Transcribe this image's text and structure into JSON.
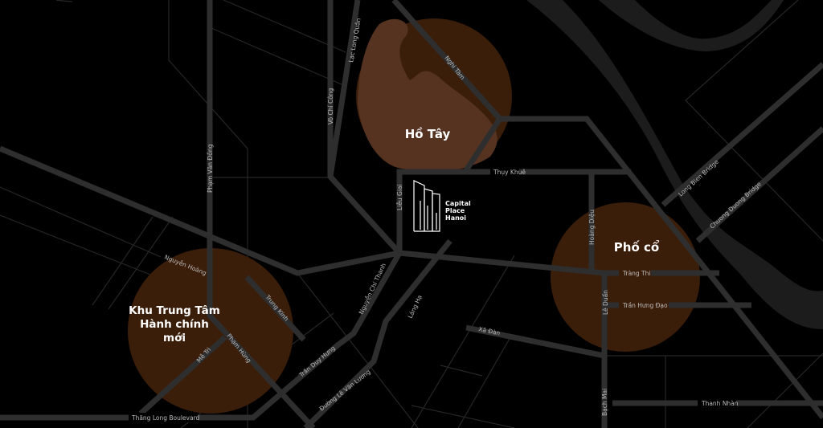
{
  "colors": {
    "background": "#000000",
    "road": "#2e2e2e",
    "river": "#1c1c1c",
    "district": "#3b1e0a",
    "lake": "#553320"
  },
  "districts": [
    {
      "name": "Hồ Tây"
    },
    {
      "name_lines": [
        "Khu Trung Tâm",
        "Hành chính",
        "mới"
      ]
    },
    {
      "name": "Phố cổ"
    }
  ],
  "landmark": {
    "icon": "building-logo-icon",
    "lines": [
      "Capital",
      "Place",
      "Hanoi"
    ]
  },
  "streets": {
    "lac_long_quan": "Lạc Long Quân",
    "vo_chi_cong": "Võ Chí Công",
    "pham_van_dong": "Phạm Văn Đồng",
    "nghi_tam": "Nghi Tàm",
    "thuy_khue": "Thụy Khuê",
    "lieu_giai": "Liễu Giai",
    "long_bien": "Long Bien Bridge",
    "chuong_duong": "Chuong Duong Bridge",
    "hoang_dieu": "Hoàng Diệu",
    "trang_thi": "Tràng Thi",
    "le_duan": "Lê Duẩn",
    "tran_hung_dao": "Trần Hưng Đạo",
    "xa_dan": "Xã Đàn",
    "bach_mai": "Bạch Mai",
    "thanh_nhan": "Thanh Nhàn",
    "nguyen_hoang": "Nguyễn Hoàng",
    "trung_kinh": "Trung Kính",
    "pham_hung": "Phạm Hùng",
    "me_tri": "Mễ Trì",
    "nguyen_chi_thanh": "Nguyễn Chí Thanh",
    "lang_ha": "Láng Hạ",
    "tran_duy_hung": "Trần Duy Hưng",
    "le_van_luong": "Đường Lê Văn Lương",
    "thang_long": "Thăng Long Boulevard"
  }
}
